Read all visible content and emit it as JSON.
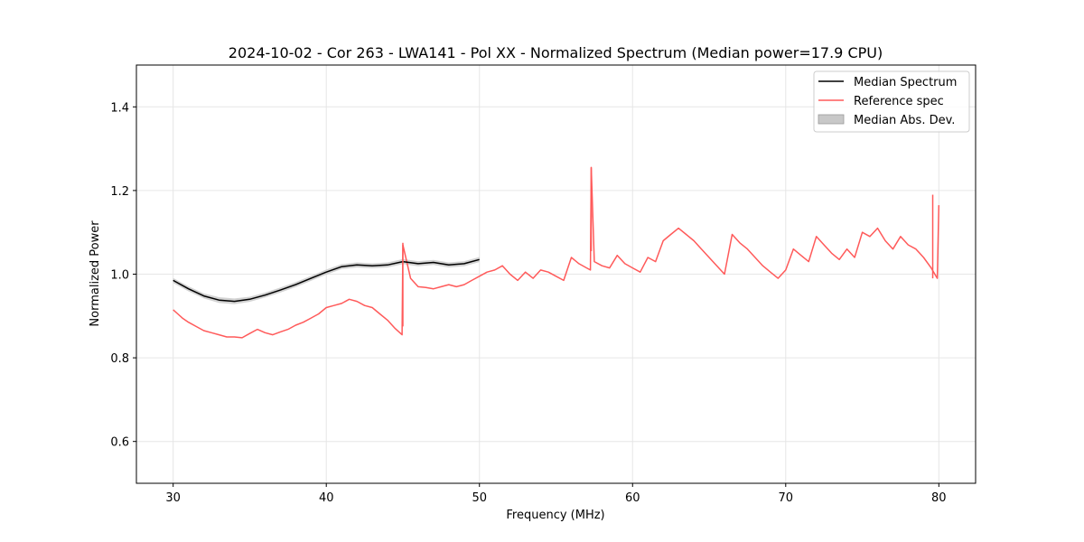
{
  "chart_data": {
    "type": "line",
    "title": "2024-10-02 - Cor 263 - LWA141 - Pol XX - Normalized Spectrum (Median power=17.9 CPU)",
    "xlabel": "Frequency (MHz)",
    "ylabel": "Normalized Power",
    "xlim": [
      27.6,
      82.4
    ],
    "ylim": [
      0.5,
      1.5
    ],
    "xticks": [
      30,
      40,
      50,
      60,
      70,
      80
    ],
    "yticks": [
      0.6,
      0.8,
      1.0,
      1.2,
      1.4
    ],
    "xtick_labels": [
      "30",
      "40",
      "50",
      "60",
      "70",
      "80"
    ],
    "ytick_labels": [
      "0.6",
      "0.8",
      "1.0",
      "1.2",
      "1.4"
    ],
    "grid": true,
    "legend_position": "top-right",
    "legend": [
      "Median Spectrum",
      "Reference spec",
      "Median Abs. Dev."
    ],
    "series": [
      {
        "name": "Median Spectrum",
        "color": "#000000",
        "x": [
          30.0,
          31.0,
          32.0,
          33.0,
          34.0,
          35.0,
          36.0,
          37.0,
          38.0,
          39.0,
          40.0,
          41.0,
          42.0,
          43.0,
          44.0,
          45.0,
          46.0,
          47.0,
          48.0,
          49.0,
          50.0
        ],
        "y": [
          0.985,
          0.965,
          0.948,
          0.938,
          0.935,
          0.94,
          0.95,
          0.962,
          0.975,
          0.99,
          1.005,
          1.018,
          1.022,
          1.02,
          1.022,
          1.03,
          1.025,
          1.028,
          1.022,
          1.025,
          1.035
        ]
      },
      {
        "name": "Reference spec",
        "color": "#ff5a5a",
        "x": [
          30.0,
          30.3,
          30.6,
          31.0,
          31.5,
          32.0,
          32.5,
          33.0,
          33.5,
          34.0,
          34.5,
          35.0,
          35.5,
          36.0,
          36.5,
          37.0,
          37.5,
          38.0,
          38.5,
          39.0,
          39.5,
          40.0,
          40.5,
          41.0,
          41.5,
          42.0,
          42.5,
          43.0,
          43.5,
          44.0,
          44.5,
          44.95,
          45.0,
          45.5,
          46.0,
          46.5,
          47.0,
          47.5,
          48.0,
          48.5,
          49.0,
          49.5,
          50.0,
          50.5,
          51.0,
          51.5,
          52.0,
          52.5,
          53.0,
          53.5,
          54.0,
          54.5,
          55.0,
          55.5,
          56.0,
          56.5,
          57.0,
          57.25,
          57.3,
          57.5,
          58.0,
          58.5,
          59.0,
          59.5,
          60.0,
          60.5,
          61.0,
          61.5,
          62.0,
          62.5,
          63.0,
          63.5,
          64.0,
          64.5,
          65.0,
          65.5,
          66.0,
          66.5,
          67.0,
          67.5,
          68.0,
          68.5,
          69.0,
          69.5,
          70.0,
          70.5,
          71.0,
          71.5,
          72.0,
          72.5,
          73.0,
          73.5,
          74.0,
          74.5,
          75.0,
          75.5,
          76.0,
          76.5,
          77.0,
          77.5,
          78.0,
          78.5,
          79.0,
          79.5,
          79.9,
          80.0
        ],
        "y": [
          0.915,
          0.905,
          0.895,
          0.885,
          0.875,
          0.865,
          0.86,
          0.855,
          0.85,
          0.85,
          0.848,
          0.858,
          0.868,
          0.86,
          0.855,
          0.862,
          0.868,
          0.878,
          0.885,
          0.895,
          0.905,
          0.92,
          0.925,
          0.93,
          0.94,
          0.935,
          0.925,
          0.92,
          0.905,
          0.89,
          0.87,
          0.855,
          1.07,
          0.99,
          0.97,
          0.968,
          0.965,
          0.97,
          0.975,
          0.97,
          0.975,
          0.985,
          0.995,
          1.005,
          1.01,
          1.02,
          1.0,
          0.985,
          1.005,
          0.99,
          1.01,
          1.005,
          0.995,
          0.985,
          1.04,
          1.025,
          1.015,
          1.01,
          1.255,
          1.03,
          1.02,
          1.015,
          1.045,
          1.025,
          1.015,
          1.005,
          1.04,
          1.03,
          1.08,
          1.095,
          1.11,
          1.095,
          1.08,
          1.06,
          1.04,
          1.02,
          1.0,
          1.095,
          1.075,
          1.06,
          1.04,
          1.02,
          1.005,
          0.99,
          1.01,
          1.06,
          1.045,
          1.03,
          1.09,
          1.07,
          1.05,
          1.035,
          1.06,
          1.04,
          1.1,
          1.09,
          1.11,
          1.08,
          1.06,
          1.09,
          1.07,
          1.06,
          1.04,
          1.015,
          0.99,
          1.165
        ],
        "spikes": [
          {
            "x": 45.0,
            "y": 1.075
          },
          {
            "x": 57.3,
            "y": 1.255
          },
          {
            "x": 79.6,
            "y": 1.19
          }
        ]
      }
    ],
    "band": {
      "name": "Median Abs. Dev.",
      "color": "#c8c8c8",
      "x": [
        30.0,
        31.0,
        32.0,
        33.0,
        34.0,
        35.0,
        36.0,
        37.0,
        38.0,
        39.0,
        40.0,
        41.0,
        42.0,
        43.0,
        44.0,
        45.0,
        46.0,
        47.0,
        48.0,
        49.0,
        50.0
      ],
      "lower": [
        0.979,
        0.959,
        0.942,
        0.931,
        0.928,
        0.934,
        0.944,
        0.956,
        0.969,
        0.984,
        0.999,
        1.012,
        1.016,
        1.014,
        1.016,
        1.024,
        1.019,
        1.022,
        1.016,
        1.019,
        1.029
      ],
      "upper": [
        0.991,
        0.971,
        0.954,
        0.945,
        0.942,
        0.946,
        0.956,
        0.968,
        0.981,
        0.996,
        1.011,
        1.024,
        1.028,
        1.026,
        1.028,
        1.036,
        1.031,
        1.034,
        1.028,
        1.031,
        1.041
      ]
    }
  }
}
